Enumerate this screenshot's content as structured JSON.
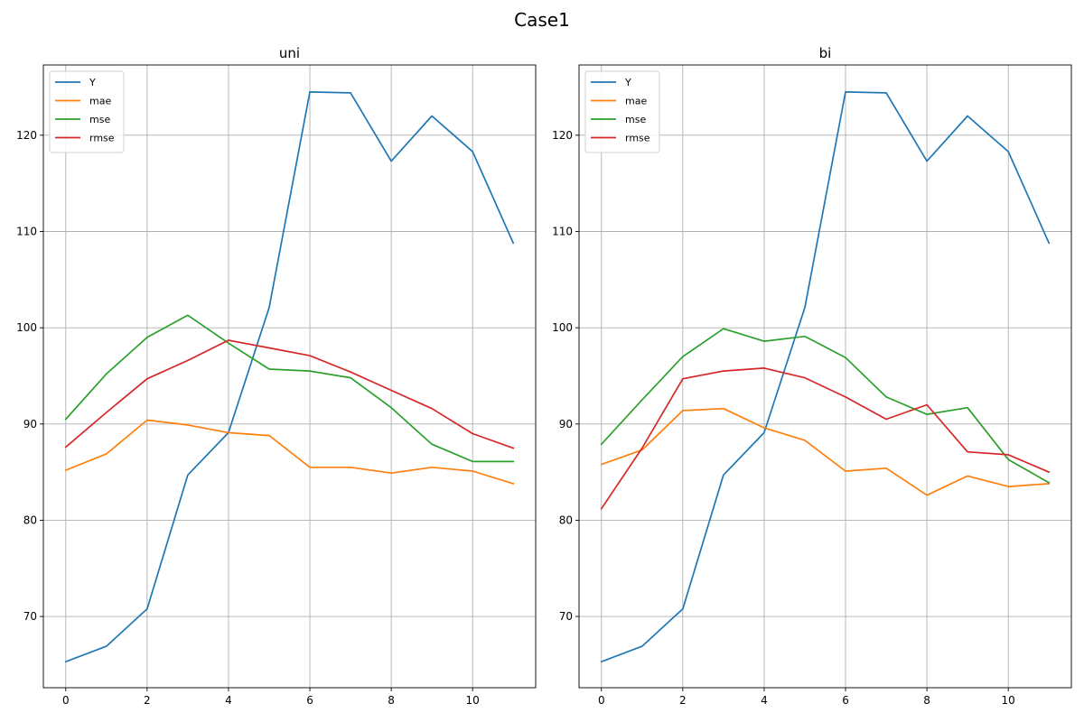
{
  "figure": {
    "title": "Case1"
  },
  "chart_data": [
    {
      "type": "line",
      "title": "uni",
      "xlabel": "",
      "ylabel": "",
      "x": [
        0,
        1,
        2,
        3,
        4,
        5,
        6,
        7,
        8,
        9,
        10,
        11
      ],
      "xlim": [
        -0.55,
        11.55
      ],
      "ylim": [
        62.6,
        127.3
      ],
      "xticks": [
        0,
        2,
        4,
        6,
        8,
        10
      ],
      "yticks": [
        70,
        80,
        90,
        100,
        110,
        120
      ],
      "grid": true,
      "legend_position": "top-left",
      "series": [
        {
          "name": "Y",
          "color": "#1f77b4",
          "values": [
            65.3,
            66.9,
            70.8,
            84.7,
            89.1,
            102.1,
            124.5,
            124.4,
            117.3,
            122.0,
            118.3,
            108.8
          ]
        },
        {
          "name": "mae",
          "color": "#ff7f0e",
          "values": [
            85.2,
            86.9,
            90.4,
            89.9,
            89.1,
            88.8,
            85.5,
            85.5,
            84.9,
            85.5,
            85.1,
            83.8
          ]
        },
        {
          "name": "mse",
          "color": "#2ca02c",
          "values": [
            90.5,
            95.2,
            99.0,
            101.3,
            98.4,
            95.7,
            95.5,
            94.8,
            91.7,
            87.9,
            86.1,
            86.1
          ]
        },
        {
          "name": "rmse",
          "color": "#d62728",
          "values": [
            87.6,
            91.2,
            94.7,
            96.6,
            98.7,
            97.9,
            97.1,
            95.4,
            93.5,
            91.6,
            89.0,
            87.5
          ]
        }
      ]
    },
    {
      "type": "line",
      "title": "bi",
      "xlabel": "",
      "ylabel": "",
      "x": [
        0,
        1,
        2,
        3,
        4,
        5,
        6,
        7,
        8,
        9,
        10,
        11
      ],
      "xlim": [
        -0.55,
        11.55
      ],
      "ylim": [
        62.6,
        127.3
      ],
      "xticks": [
        0,
        2,
        4,
        6,
        8,
        10
      ],
      "yticks": [
        70,
        80,
        90,
        100,
        110,
        120
      ],
      "grid": true,
      "legend_position": "top-left",
      "series": [
        {
          "name": "Y",
          "color": "#1f77b4",
          "values": [
            65.3,
            66.9,
            70.8,
            84.7,
            89.1,
            102.1,
            124.5,
            124.4,
            117.3,
            122.0,
            118.3,
            108.8
          ]
        },
        {
          "name": "mae",
          "color": "#ff7f0e",
          "values": [
            85.8,
            87.3,
            91.4,
            91.6,
            89.6,
            88.3,
            85.1,
            85.4,
            82.6,
            84.6,
            83.5,
            83.8
          ]
        },
        {
          "name": "mse",
          "color": "#2ca02c",
          "values": [
            87.9,
            92.5,
            97.0,
            99.9,
            98.6,
            99.1,
            96.9,
            92.8,
            91.0,
            91.7,
            86.3,
            83.9
          ]
        },
        {
          "name": "rmse",
          "color": "#d62728",
          "values": [
            81.2,
            87.5,
            94.7,
            95.5,
            95.8,
            94.8,
            92.8,
            90.5,
            92.0,
            87.1,
            86.8,
            85.0
          ]
        }
      ]
    }
  ]
}
